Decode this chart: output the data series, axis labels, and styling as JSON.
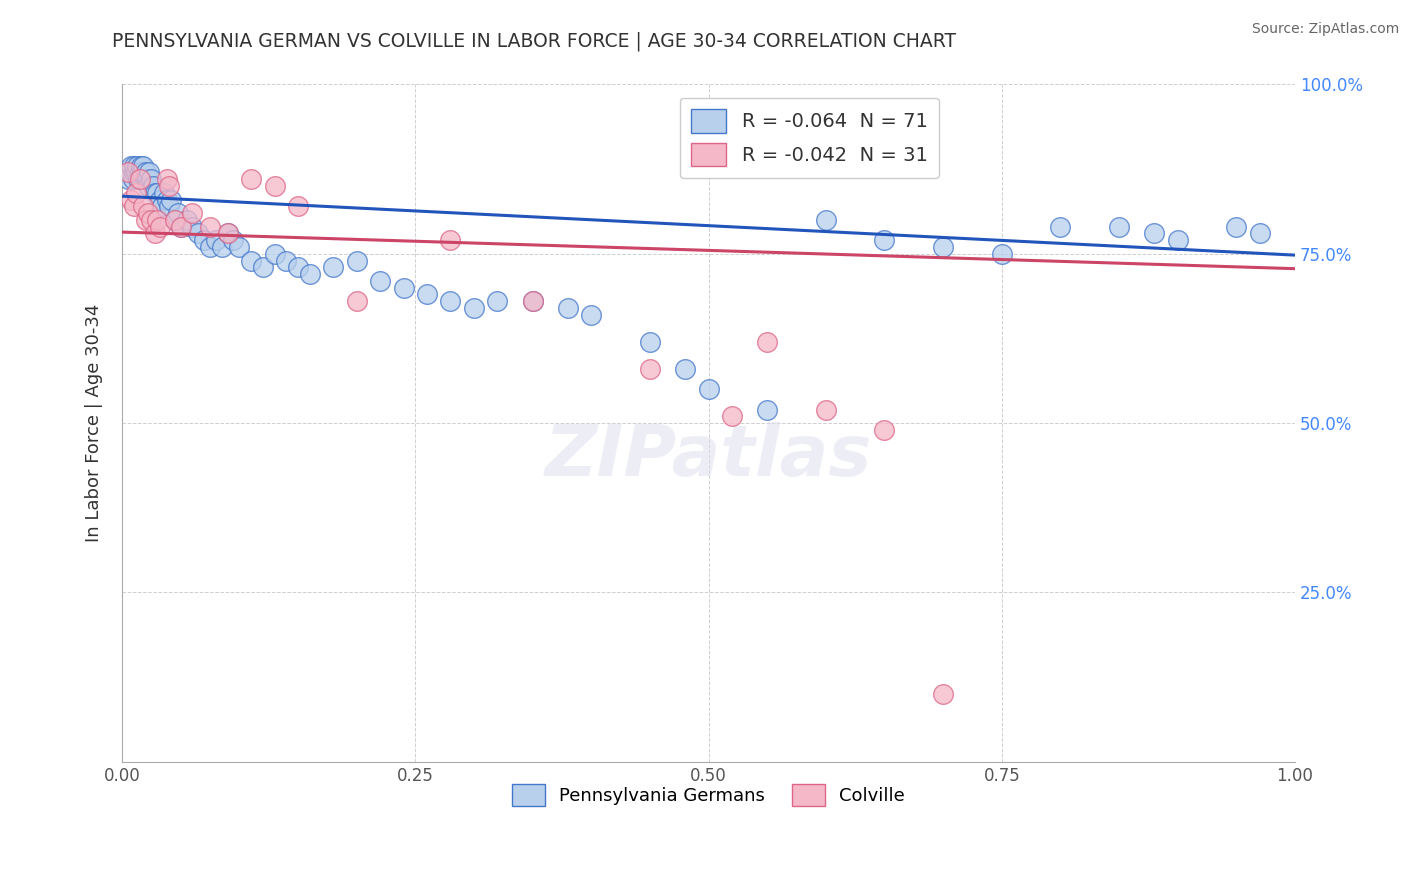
{
  "title": "PENNSYLVANIA GERMAN VS COLVILLE IN LABOR FORCE | AGE 30-34 CORRELATION CHART",
  "source": "Source: ZipAtlas.com",
  "ylabel": "In Labor Force | Age 30-34",
  "xlim": [
    0.0,
    1.0
  ],
  "ylim": [
    0.0,
    1.0
  ],
  "xticks": [
    0.0,
    0.25,
    0.5,
    0.75,
    1.0
  ],
  "yticks": [
    0.0,
    0.25,
    0.5,
    0.75,
    1.0
  ],
  "xticklabels": [
    "0.0%",
    "25.0%",
    "50.0%",
    "75.0%",
    "100.0%"
  ],
  "right_yticklabels": [
    "",
    "25.0%",
    "50.0%",
    "75.0%",
    "100.0%"
  ],
  "blue_r": "-0.064",
  "blue_n": "71",
  "pink_r": "-0.042",
  "pink_n": "31",
  "blue_fill": "#b8d0eb",
  "pink_fill": "#f4b8c8",
  "blue_edge": "#4477cc",
  "pink_edge": "#dd6688",
  "blue_line_color": "#2255bb",
  "pink_line_color": "#cc4466",
  "grid_color": "#bbbbbb",
  "tick_color": "#4488ff",
  "legend_label_blue": "Pennsylvania Germans",
  "legend_label_pink": "Colville",
  "blue_line_x0": 0.0,
  "blue_line_y0": 0.835,
  "blue_line_x1": 1.0,
  "blue_line_y1": 0.748,
  "pink_line_x0": 0.0,
  "pink_line_y0": 0.782,
  "pink_line_x1": 1.0,
  "pink_line_y1": 0.728,
  "blue_x": [
    0.005,
    0.007,
    0.008,
    0.009,
    0.01,
    0.01,
    0.012,
    0.013,
    0.014,
    0.015,
    0.016,
    0.017,
    0.018,
    0.02,
    0.021,
    0.022,
    0.023,
    0.025,
    0.026,
    0.028,
    0.03,
    0.032,
    0.034,
    0.036,
    0.038,
    0.04,
    0.042,
    0.045,
    0.048,
    0.05,
    0.055,
    0.06,
    0.065,
    0.07,
    0.075,
    0.08,
    0.085,
    0.09,
    0.095,
    0.1,
    0.11,
    0.12,
    0.13,
    0.14,
    0.15,
    0.16,
    0.18,
    0.2,
    0.22,
    0.24,
    0.26,
    0.28,
    0.3,
    0.32,
    0.35,
    0.38,
    0.4,
    0.45,
    0.48,
    0.5,
    0.55,
    0.6,
    0.65,
    0.7,
    0.75,
    0.8,
    0.85,
    0.88,
    0.9,
    0.95,
    0.97
  ],
  "blue_y": [
    0.86,
    0.87,
    0.88,
    0.86,
    0.87,
    0.88,
    0.87,
    0.88,
    0.86,
    0.87,
    0.88,
    0.87,
    0.88,
    0.87,
    0.86,
    0.85,
    0.87,
    0.86,
    0.85,
    0.84,
    0.84,
    0.83,
    0.82,
    0.84,
    0.83,
    0.82,
    0.83,
    0.8,
    0.81,
    0.79,
    0.8,
    0.79,
    0.78,
    0.77,
    0.76,
    0.77,
    0.76,
    0.78,
    0.77,
    0.76,
    0.74,
    0.73,
    0.75,
    0.74,
    0.73,
    0.72,
    0.73,
    0.74,
    0.71,
    0.7,
    0.69,
    0.68,
    0.67,
    0.68,
    0.68,
    0.67,
    0.66,
    0.62,
    0.58,
    0.55,
    0.52,
    0.8,
    0.77,
    0.76,
    0.75,
    0.79,
    0.79,
    0.78,
    0.77,
    0.79,
    0.78
  ],
  "pink_x": [
    0.005,
    0.008,
    0.01,
    0.012,
    0.015,
    0.018,
    0.02,
    0.022,
    0.025,
    0.028,
    0.03,
    0.032,
    0.038,
    0.04,
    0.045,
    0.05,
    0.06,
    0.075,
    0.09,
    0.11,
    0.13,
    0.15,
    0.2,
    0.28,
    0.35,
    0.45,
    0.52,
    0.55,
    0.6,
    0.65,
    0.7
  ],
  "pink_y": [
    0.87,
    0.83,
    0.82,
    0.84,
    0.86,
    0.82,
    0.8,
    0.81,
    0.8,
    0.78,
    0.8,
    0.79,
    0.86,
    0.85,
    0.8,
    0.79,
    0.81,
    0.79,
    0.78,
    0.86,
    0.85,
    0.82,
    0.68,
    0.77,
    0.68,
    0.58,
    0.51,
    0.62,
    0.52,
    0.49,
    0.1
  ]
}
